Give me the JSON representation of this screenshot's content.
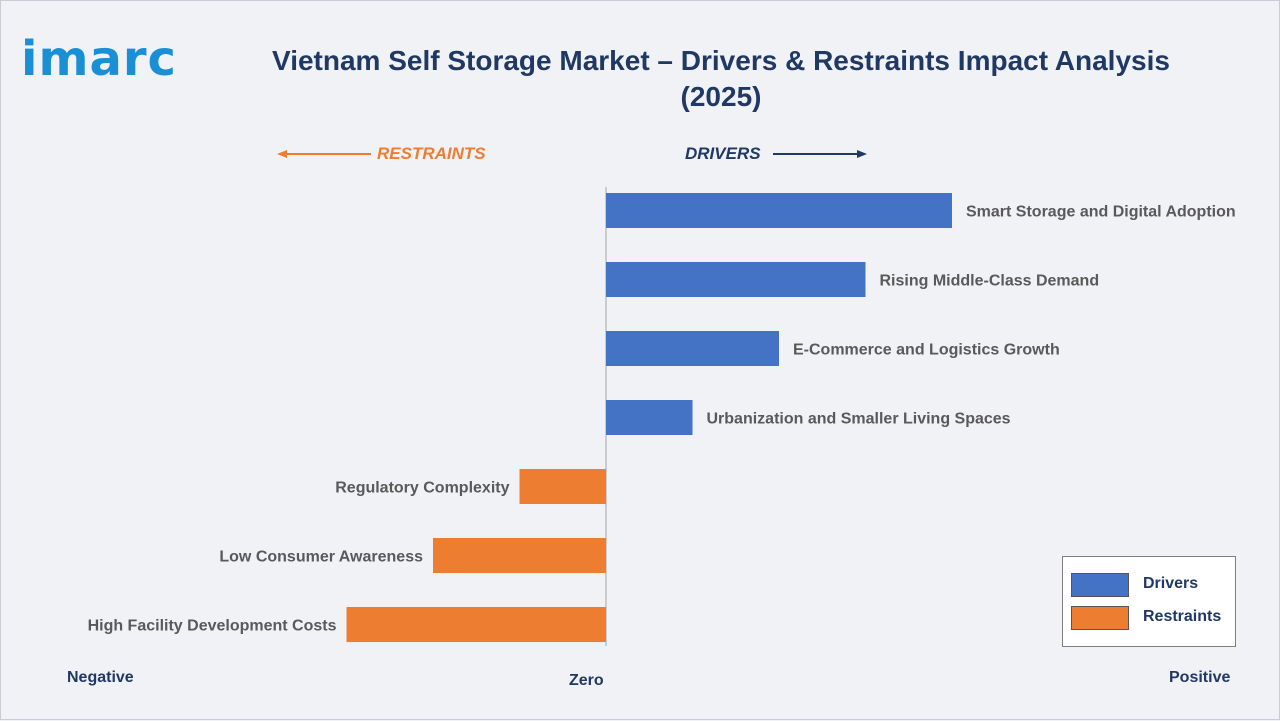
{
  "logo": "imarc",
  "direction_labels": {
    "restraints": "RESTRAINTS",
    "drivers": "DRIVERS"
  },
  "axis_words": {
    "negative": "Negative",
    "zero": "Zero",
    "positive": "Positive"
  },
  "legend": {
    "drivers": "Drivers",
    "restraints": "Restraints"
  },
  "colors": {
    "drivers": "#4472c4",
    "restraints": "#ed7d31",
    "title": "#1f3864",
    "logo": "#1b8fd6"
  },
  "chart_data": {
    "type": "bar",
    "orientation": "horizontal",
    "title": "Vietnam Self Storage Market – Drivers & Restraints Impact Analysis (2025)",
    "xlabel": "",
    "ylabel": "",
    "xlim": [
      -3,
      7.5
    ],
    "grid": false,
    "legend_position": "bottom-right",
    "categories": [
      "Smart Storage and Digital Adoption",
      "Rising Middle-Class Demand",
      "E-Commerce and Logistics Growth",
      "Urbanization and Smaller Living Spaces",
      "Regulatory Complexity",
      "Low Consumer Awareness",
      "High Facility Development Costs"
    ],
    "series": [
      {
        "name": "Drivers",
        "values": [
          4,
          3,
          2,
          1,
          null,
          null,
          null
        ]
      },
      {
        "name": "Restraints",
        "values": [
          null,
          null,
          null,
          null,
          -1,
          -2,
          -3
        ]
      }
    ]
  }
}
